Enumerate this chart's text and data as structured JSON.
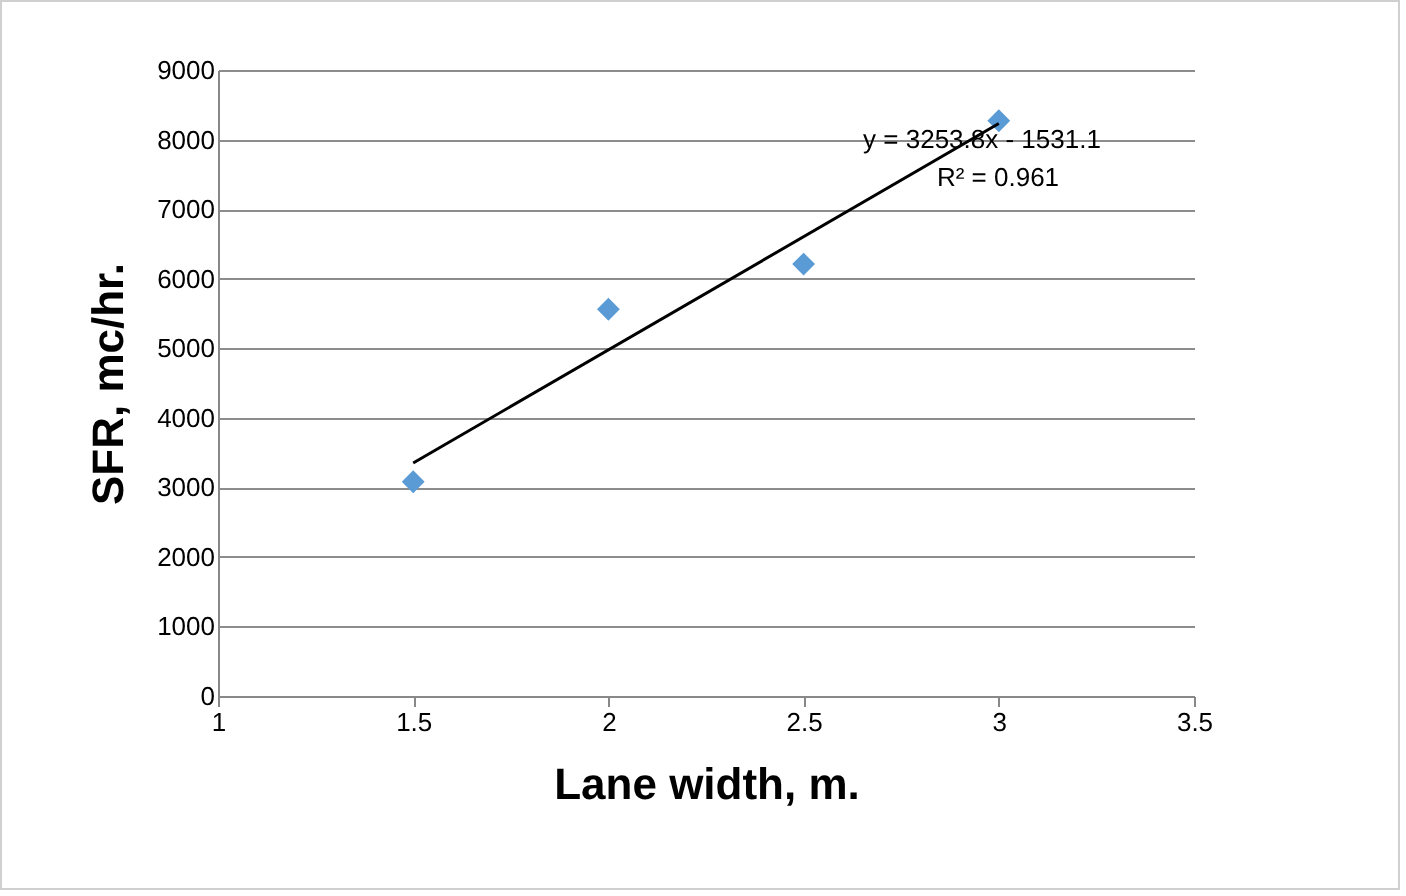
{
  "chart_data": {
    "type": "scatter",
    "xlabel": "Lane width, m.",
    "ylabel": "SFR, mc/hr.",
    "x": [
      1.5,
      2,
      2.5,
      3
    ],
    "series": [
      {
        "color": "#5b9bd5",
        "values": [
          3080,
          5560,
          6210,
          8270
        ],
        "marker": "diamond"
      },
      {
        "type": "line",
        "color": "#000000",
        "x": [
          1.5,
          3
        ],
        "values": [
          3350,
          8230
        ]
      }
    ],
    "xlim": [
      1,
      3.5
    ],
    "xticks": [
      1,
      1.5,
      2,
      2.5,
      3,
      3.5
    ],
    "ylim": [
      0,
      9000
    ],
    "yticks": [
      0,
      1000,
      2000,
      3000,
      4000,
      5000,
      6000,
      7000,
      8000,
      9000
    ],
    "grid": "y",
    "annotations": [
      "y = 3253.8x - 1531.1",
      "R² = 0.961"
    ]
  }
}
